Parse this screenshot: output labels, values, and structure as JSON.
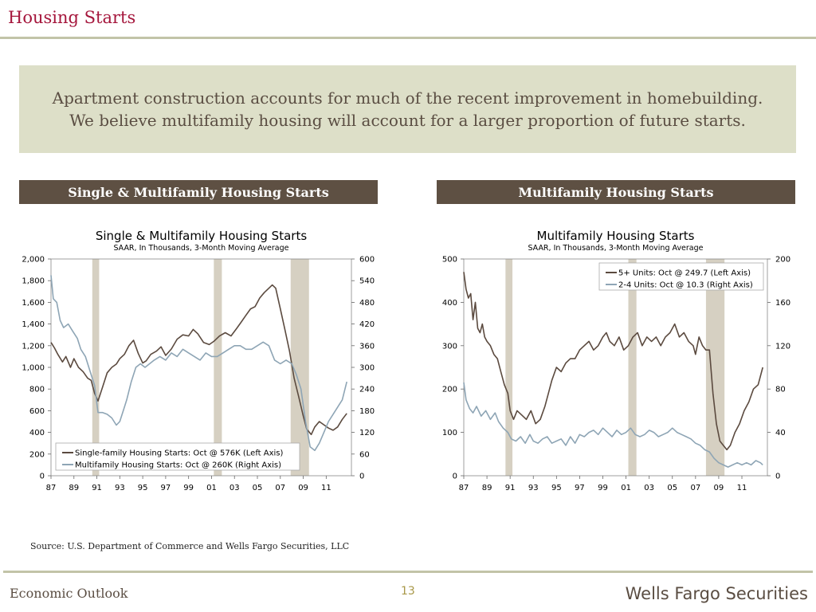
{
  "page": {
    "title": "Housing Starts",
    "banner": [
      "Apartment construction accounts for much of the recent improvement in homebuilding.",
      "We believe multifamily housing will account for a larger proportion of future starts."
    ],
    "panel_left_header": "Single & Multifamily Housing Starts",
    "panel_right_header": "Multifamily Housing Starts",
    "source": "Source: U.S. Department of Commerce and Wells Fargo Securities, LLC",
    "footer_left": "Economic Outlook",
    "page_number": "13",
    "logo": "Wells Fargo Securities"
  },
  "chart_data": [
    {
      "type": "line",
      "title": "Single & Multifamily Housing Starts",
      "subtitle": "SAAR, In Thousands, 3-Month Moving Average",
      "xlim": [
        1987,
        2013.2
      ],
      "x_ticks": [
        1987,
        1989,
        1991,
        1993,
        1995,
        1997,
        1999,
        2001,
        2003,
        2005,
        2007,
        2009,
        2011
      ],
      "x_tick_labels": [
        "87",
        "89",
        "91",
        "93",
        "95",
        "97",
        "99",
        "01",
        "03",
        "05",
        "07",
        "09",
        "11"
      ],
      "ylim_left": [
        0,
        2000
      ],
      "y_ticks_left": [
        "0",
        "200",
        "400",
        "600",
        "800",
        "1,000",
        "1,200",
        "1,400",
        "1,600",
        "1,800",
        "2,000"
      ],
      "ylim_right": [
        0,
        600
      ],
      "y_ticks_right": [
        "0",
        "60",
        "120",
        "180",
        "240",
        "300",
        "360",
        "420",
        "480",
        "540",
        "600"
      ],
      "recessions": [
        [
          1990.6,
          1991.2
        ],
        [
          2001.2,
          2001.9
        ],
        [
          2007.9,
          2009.5
        ]
      ],
      "legend_position": "bottom-left",
      "colors": {
        "line1": "#5b4a3f",
        "line2": "#8ea5b5",
        "recession": "#d6d0c2"
      },
      "series": [
        {
          "name": "Single-family Housing Starts: Oct @ 576K (Left Axis)",
          "axis": "left",
          "x": [
            1987.0,
            1987.3,
            1987.6,
            1988.0,
            1988.3,
            1988.7,
            1989.0,
            1989.4,
            1989.8,
            1990.2,
            1990.5,
            1990.8,
            1991.1,
            1991.5,
            1991.9,
            1992.3,
            1992.7,
            1993.0,
            1993.4,
            1993.8,
            1994.2,
            1994.6,
            1995.0,
            1995.3,
            1995.7,
            1996.2,
            1996.6,
            1997.0,
            1997.5,
            1998.0,
            1998.5,
            1999.0,
            1999.4,
            1999.8,
            2000.3,
            2000.8,
            2001.2,
            2001.7,
            2002.2,
            2002.7,
            2003.2,
            2003.6,
            2004.0,
            2004.4,
            2004.8,
            2005.2,
            2005.6,
            2006.0,
            2006.3,
            2006.6,
            2007.0,
            2007.4,
            2007.8,
            2008.2,
            2008.6,
            2009.0,
            2009.3,
            2009.7,
            2010.0,
            2010.4,
            2010.8,
            2011.2,
            2011.6,
            2012.0,
            2012.4,
            2012.8
          ],
          "y": [
            1230,
            1180,
            1120,
            1050,
            1100,
            1000,
            1080,
            1000,
            960,
            900,
            880,
            760,
            690,
            820,
            950,
            1000,
            1030,
            1080,
            1120,
            1200,
            1250,
            1130,
            1040,
            1060,
            1120,
            1150,
            1190,
            1110,
            1170,
            1260,
            1300,
            1290,
            1350,
            1310,
            1230,
            1210,
            1240,
            1290,
            1320,
            1290,
            1360,
            1420,
            1480,
            1540,
            1560,
            1640,
            1690,
            1730,
            1760,
            1730,
            1540,
            1350,
            1150,
            900,
            730,
            550,
            430,
            380,
            450,
            500,
            470,
            440,
            420,
            450,
            520,
            575
          ]
        },
        {
          "name": "Multifamily Housing Starts: Oct @ 260K (Right Axis)",
          "axis": "right",
          "x": [
            1987.0,
            1987.2,
            1987.5,
            1987.8,
            1988.1,
            1988.5,
            1988.9,
            1989.3,
            1989.6,
            1990.0,
            1990.4,
            1990.8,
            1991.1,
            1991.5,
            1991.9,
            1992.3,
            1992.7,
            1993.0,
            1993.3,
            1993.6,
            1994.0,
            1994.4,
            1994.8,
            1995.2,
            1995.6,
            1996.0,
            1996.5,
            1997.0,
            1997.5,
            1998.0,
            1998.5,
            1999.0,
            1999.5,
            2000.0,
            2000.5,
            2001.0,
            2001.5,
            2002.0,
            2002.5,
            2003.0,
            2003.5,
            2004.0,
            2004.5,
            2005.0,
            2005.5,
            2006.0,
            2006.5,
            2007.0,
            2007.5,
            2008.0,
            2008.4,
            2008.8,
            2009.2,
            2009.6,
            2010.0,
            2010.4,
            2010.8,
            2011.2,
            2011.6,
            2012.0,
            2012.4,
            2012.8
          ],
          "y": [
            555,
            490,
            480,
            430,
            410,
            420,
            400,
            380,
            350,
            330,
            290,
            250,
            175,
            175,
            170,
            160,
            140,
            150,
            180,
            210,
            260,
            300,
            310,
            300,
            310,
            320,
            330,
            320,
            340,
            330,
            350,
            340,
            330,
            320,
            340,
            330,
            330,
            340,
            350,
            360,
            360,
            350,
            350,
            360,
            370,
            360,
            320,
            310,
            320,
            310,
            280,
            240,
            150,
            80,
            70,
            90,
            120,
            150,
            170,
            190,
            210,
            260
          ]
        }
      ]
    },
    {
      "type": "line",
      "title": "Multifamily Housing Starts",
      "subtitle": "SAAR, In Thousands, 3-Month Moving Average",
      "xlim": [
        1987,
        2013.2
      ],
      "x_ticks": [
        1987,
        1989,
        1991,
        1993,
        1995,
        1997,
        1999,
        2001,
        2003,
        2005,
        2007,
        2009,
        2011
      ],
      "x_tick_labels": [
        "87",
        "89",
        "91",
        "93",
        "95",
        "97",
        "99",
        "01",
        "03",
        "05",
        "07",
        "09",
        "11"
      ],
      "ylim_left": [
        0,
        500
      ],
      "y_ticks_left": [
        "0",
        "100",
        "200",
        "300",
        "400",
        "500"
      ],
      "ylim_right": [
        0,
        200
      ],
      "y_ticks_right": [
        "0",
        "40",
        "80",
        "120",
        "160",
        "200"
      ],
      "recessions": [
        [
          1990.6,
          1991.2
        ],
        [
          2001.2,
          2001.9
        ],
        [
          2007.9,
          2009.5
        ]
      ],
      "legend_position": "top-right",
      "colors": {
        "line1": "#5b4a3f",
        "line2": "#8ea5b5",
        "recession": "#d6d0c2"
      },
      "series": [
        {
          "name": "5+ Units: Oct @ 249.7 (Left Axis)",
          "axis": "left",
          "x": [
            1987.0,
            1987.2,
            1987.4,
            1987.6,
            1987.8,
            1988.0,
            1988.2,
            1988.4,
            1988.6,
            1988.8,
            1989.0,
            1989.3,
            1989.6,
            1989.9,
            1990.2,
            1990.5,
            1990.8,
            1991.0,
            1991.3,
            1991.6,
            1992.0,
            1992.4,
            1992.8,
            1993.2,
            1993.6,
            1994.0,
            1994.3,
            1994.6,
            1995.0,
            1995.4,
            1995.8,
            1996.2,
            1996.6,
            1997.0,
            1997.4,
            1997.8,
            1998.2,
            1998.6,
            1999.0,
            1999.3,
            1999.6,
            2000.0,
            2000.4,
            2000.8,
            2001.2,
            2001.6,
            2002.0,
            2002.4,
            2002.8,
            2003.2,
            2003.6,
            2004.0,
            2004.4,
            2004.8,
            2005.2,
            2005.6,
            2006.0,
            2006.4,
            2006.8,
            2007.0,
            2007.3,
            2007.6,
            2007.9,
            2008.2,
            2008.5,
            2008.8,
            2009.1,
            2009.4,
            2009.7,
            2010.0,
            2010.4,
            2010.8,
            2011.2,
            2011.6,
            2012.0,
            2012.4,
            2012.8
          ],
          "y": [
            470,
            430,
            410,
            420,
            360,
            400,
            340,
            330,
            350,
            320,
            310,
            300,
            280,
            270,
            240,
            210,
            190,
            150,
            130,
            150,
            140,
            130,
            150,
            120,
            130,
            160,
            190,
            220,
            250,
            240,
            260,
            270,
            270,
            290,
            300,
            310,
            290,
            300,
            320,
            330,
            310,
            300,
            320,
            290,
            300,
            320,
            330,
            300,
            320,
            310,
            320,
            300,
            320,
            330,
            350,
            320,
            330,
            310,
            300,
            280,
            320,
            300,
            290,
            290,
            190,
            120,
            80,
            70,
            60,
            70,
            100,
            120,
            150,
            170,
            200,
            210,
            250
          ]
        },
        {
          "name": "2-4 Units: Oct @ 10.3 (Right Axis)",
          "axis": "right",
          "x": [
            1987.0,
            1987.2,
            1987.5,
            1987.8,
            1988.1,
            1988.5,
            1988.9,
            1989.3,
            1989.7,
            1990.0,
            1990.4,
            1990.8,
            1991.1,
            1991.5,
            1991.9,
            1992.3,
            1992.7,
            1993.0,
            1993.4,
            1993.8,
            1994.2,
            1994.6,
            1995.0,
            1995.4,
            1995.8,
            1996.2,
            1996.6,
            1997.0,
            1997.4,
            1997.8,
            1998.2,
            1998.6,
            1999.0,
            1999.4,
            1999.8,
            2000.2,
            2000.6,
            2001.0,
            2001.4,
            2001.8,
            2002.2,
            2002.6,
            2003.0,
            2003.4,
            2003.8,
            2004.2,
            2004.6,
            2005.0,
            2005.4,
            2005.8,
            2006.2,
            2006.6,
            2007.0,
            2007.4,
            2007.8,
            2008.2,
            2008.6,
            2009.0,
            2009.4,
            2009.8,
            2010.2,
            2010.6,
            2011.0,
            2011.4,
            2011.8,
            2012.2,
            2012.6,
            2012.8
          ],
          "y": [
            86,
            70,
            62,
            58,
            64,
            55,
            60,
            52,
            58,
            50,
            44,
            40,
            34,
            32,
            36,
            30,
            38,
            32,
            30,
            34,
            36,
            30,
            32,
            34,
            28,
            36,
            30,
            38,
            36,
            40,
            42,
            38,
            44,
            40,
            36,
            42,
            38,
            40,
            44,
            38,
            36,
            38,
            42,
            40,
            36,
            38,
            40,
            44,
            40,
            38,
            36,
            34,
            30,
            28,
            24,
            22,
            16,
            12,
            10,
            8,
            10,
            12,
            10,
            12,
            10,
            14,
            12,
            10
          ]
        }
      ]
    }
  ]
}
